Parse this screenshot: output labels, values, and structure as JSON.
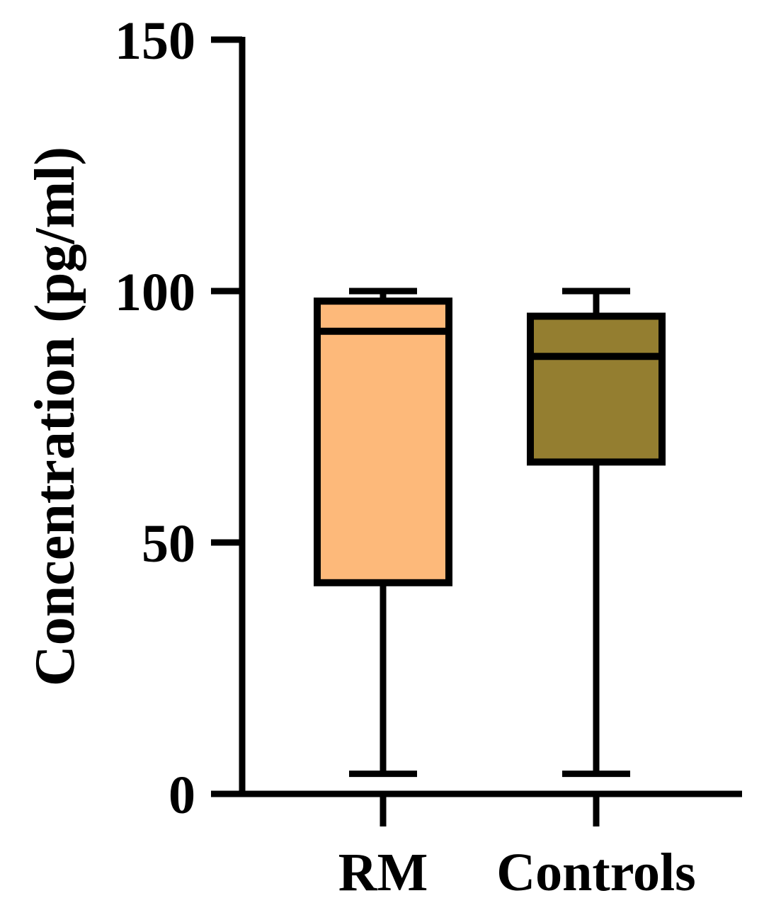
{
  "chart_data": {
    "type": "box",
    "title": "",
    "xlabel": "",
    "ylabel": "Concentration (pg/ml)",
    "ylim": [
      0,
      150
    ],
    "yticks": [
      0,
      50,
      100,
      150
    ],
    "ytick_labels": [
      "0",
      "50",
      "100",
      "150"
    ],
    "categories": [
      "RM",
      "Controls"
    ],
    "boxes": [
      {
        "category": "RM",
        "min": 4,
        "q1": 42,
        "median": 92,
        "q3": 98,
        "max": 100,
        "color": "#FDB97A"
      },
      {
        "category": "Controls",
        "min": 4,
        "q1": 66,
        "median": 87,
        "q3": 95,
        "max": 100,
        "color": "#947E30"
      }
    ],
    "grid": false,
    "legend": "none"
  }
}
